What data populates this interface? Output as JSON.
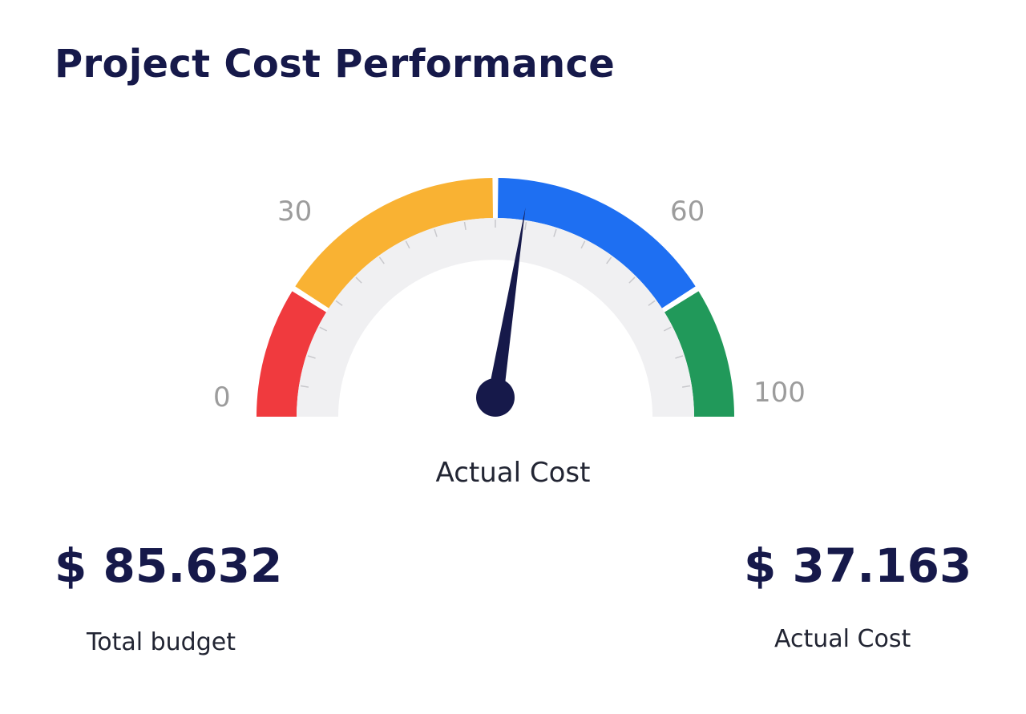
{
  "title": "Project Cost Performance",
  "gauge": {
    "min": 0,
    "max": 100,
    "value": 55,
    "caption": "Actual Cost",
    "scale_labels": [
      "0",
      "30",
      "60",
      "100"
    ],
    "segments": [
      {
        "from": 0,
        "to": 18,
        "color": "#f03a3e"
      },
      {
        "from": 18,
        "to": 50,
        "color": "#f9b233"
      },
      {
        "from": 50,
        "to": 82,
        "color": "#1e6ff2"
      },
      {
        "from": 82,
        "to": 100,
        "color": "#21995a"
      }
    ],
    "track_color": "#f0f0f2",
    "needle_color": "#16194a"
  },
  "stats": {
    "total_budget_value": "$ 85.632",
    "total_budget_label": "Total budget",
    "actual_cost_value": "$ 37.163",
    "actual_cost_label": "Actual Cost"
  }
}
